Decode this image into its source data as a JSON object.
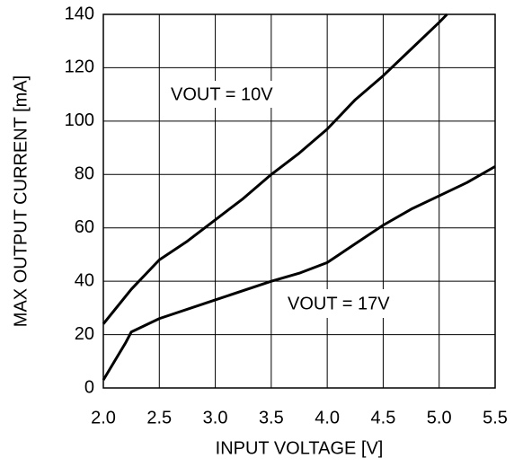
{
  "chart_data": {
    "type": "line",
    "xlabel": "INPUT VOLTAGE [V]",
    "ylabel": "MAX OUTPUT CURRENT [mA]",
    "xlim": [
      2,
      5.5
    ],
    "ylim": [
      0,
      140
    ],
    "xticks": [
      {
        "value": 2,
        "label": "2.0"
      },
      2.5,
      {
        "value": 3,
        "label": "3.0"
      },
      3.5,
      {
        "value": 4,
        "label": "4.0"
      },
      4.5,
      {
        "value": 5,
        "label": "5.0"
      },
      5.5
    ],
    "yticks": [
      0,
      20,
      40,
      60,
      80,
      100,
      120,
      140
    ],
    "grid": true,
    "annotations": [
      "VOUT = 10V",
      "VOUT = 17V"
    ],
    "series": [
      {
        "color": "#000000",
        "x": [
          2.0,
          2.25,
          2.5,
          2.75,
          3.0,
          3.25,
          3.5,
          3.75,
          4.0,
          4.25,
          4.5,
          4.75,
          5.0,
          5.07
        ],
        "values": [
          24,
          37,
          48,
          55,
          63,
          71,
          80,
          88,
          97,
          108,
          117,
          127,
          137,
          140
        ]
      },
      {
        "color": "#000000",
        "x": [
          2.0,
          2.1,
          2.2,
          2.25,
          2.5,
          3.0,
          3.5,
          3.75,
          4.0,
          4.25,
          4.5,
          4.75,
          5.0,
          5.25,
          5.5
        ],
        "values": [
          3,
          10,
          17,
          21,
          26,
          33,
          40,
          43,
          47,
          54,
          61,
          67,
          72,
          77,
          83
        ]
      }
    ]
  }
}
